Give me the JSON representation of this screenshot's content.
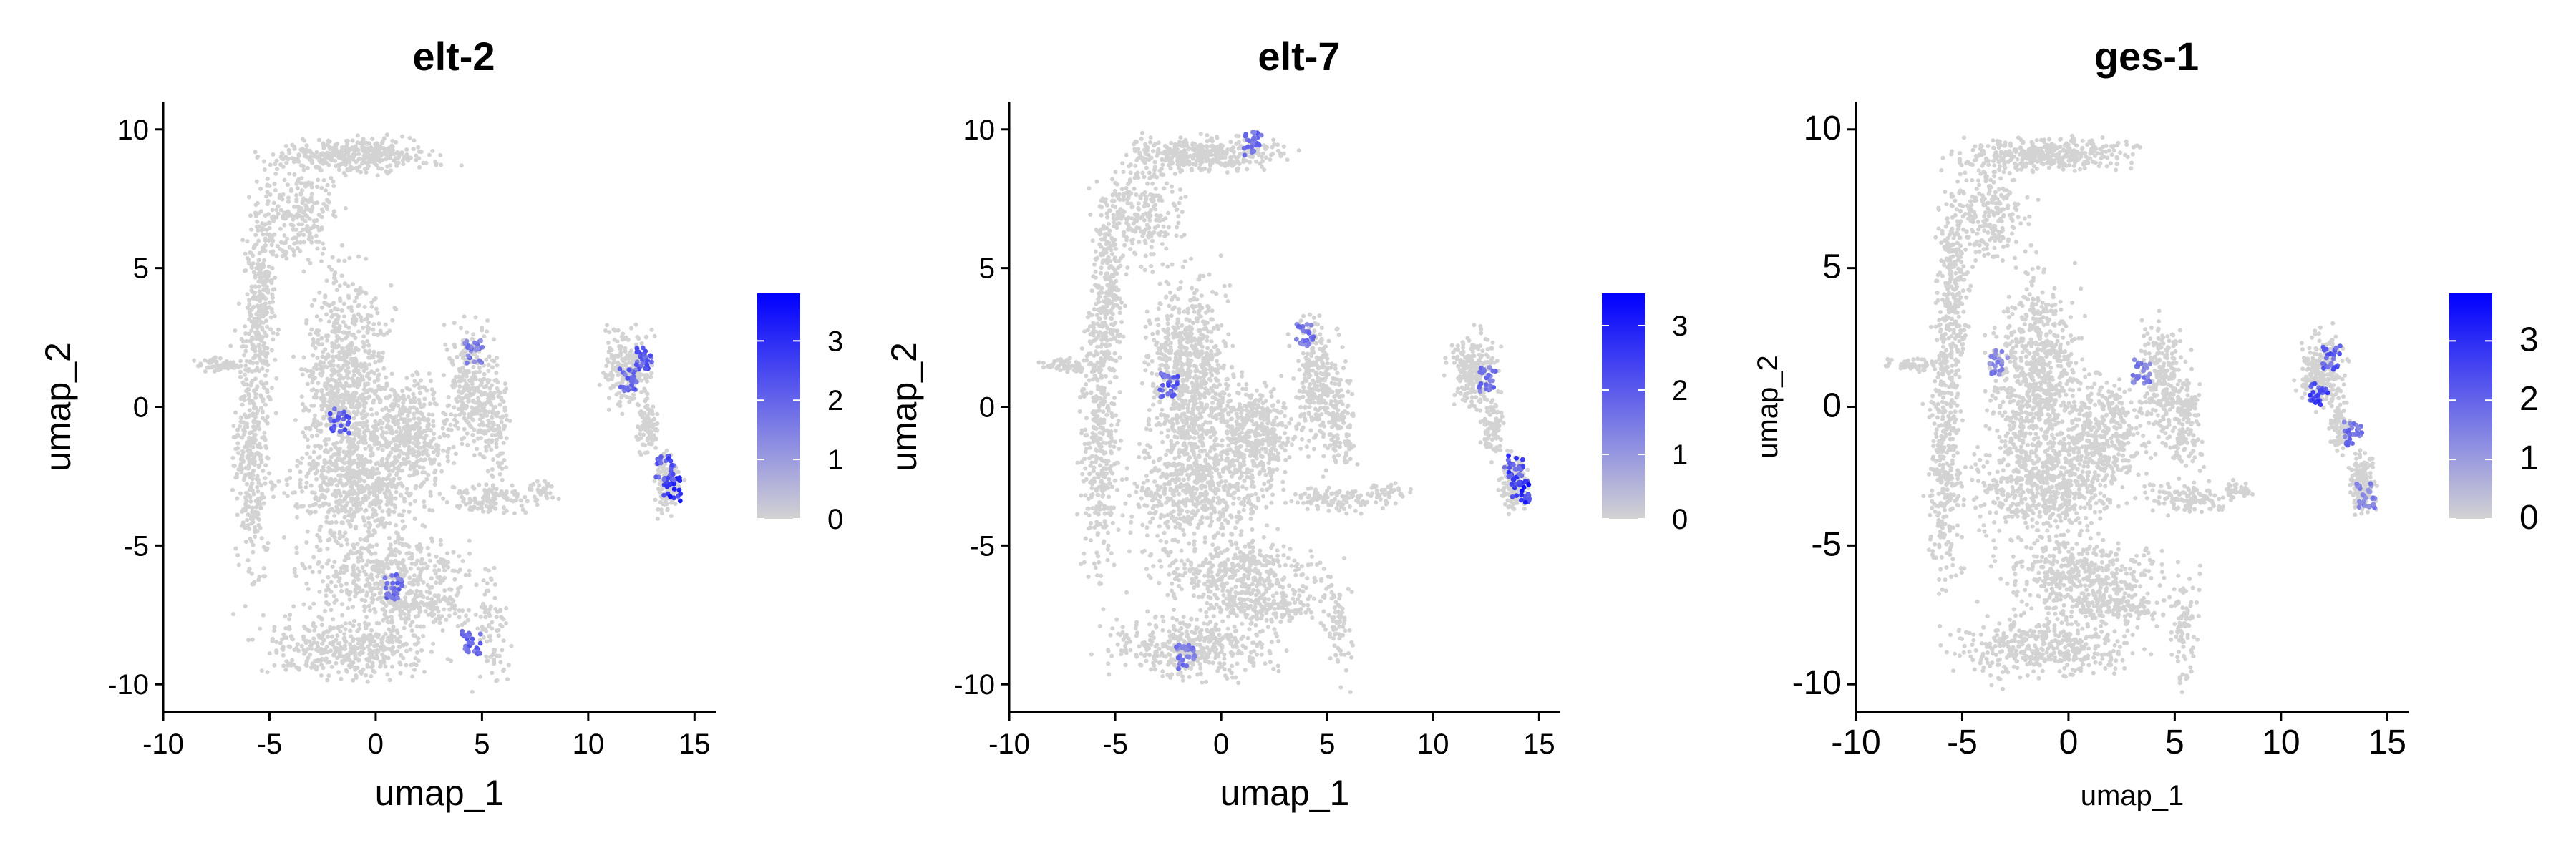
{
  "colors": {
    "low": "#d3d3d3",
    "high": "#0000ff",
    "axis": "#000000"
  },
  "chart_data": [
    {
      "type": "scatter",
      "title": "elt-2",
      "xlabel": "umap_1",
      "ylabel": "umap_2",
      "xlim": [
        -10,
        16
      ],
      "ylim": [
        -11,
        11
      ],
      "xticks": [
        "-10",
        "-5",
        "0",
        "5",
        "10",
        "15"
      ],
      "yticks": [
        "-10",
        "-5",
        "0",
        "5",
        "10"
      ],
      "colorbar": {
        "min": 0,
        "max": 3.8,
        "ticks": [
          "0",
          "1",
          "2",
          "3"
        ]
      },
      "grid": false,
      "expression_hotspots": [
        {
          "x": 13.9,
          "y": -3.0,
          "value": 3.5
        },
        {
          "x": 13.6,
          "y": -2.2,
          "value": 2.8
        },
        {
          "x": 12.6,
          "y": 1.8,
          "value": 2.6
        },
        {
          "x": 11.9,
          "y": 1.0,
          "value": 2.4
        },
        {
          "x": 4.6,
          "y": 2.0,
          "value": 2.0
        },
        {
          "x": -1.7,
          "y": -0.5,
          "value": 2.6
        },
        {
          "x": 0.8,
          "y": -6.5,
          "value": 2.3
        },
        {
          "x": 4.5,
          "y": -8.5,
          "value": 2.5
        }
      ]
    },
    {
      "type": "scatter",
      "title": "elt-7",
      "xlabel": "umap_1",
      "ylabel": "umap_2",
      "xlim": [
        -10,
        16
      ],
      "ylim": [
        -11,
        11
      ],
      "xticks": [
        "-10",
        "-5",
        "0",
        "5",
        "10",
        "15"
      ],
      "yticks": [
        "-10",
        "-5",
        "0",
        "5",
        "10"
      ],
      "colorbar": {
        "min": 0,
        "max": 3.5,
        "ticks": [
          "0",
          "1",
          "2",
          "3"
        ]
      },
      "grid": false,
      "expression_hotspots": [
        {
          "x": 14.1,
          "y": -3.0,
          "value": 3.3
        },
        {
          "x": 13.8,
          "y": -2.2,
          "value": 2.8
        },
        {
          "x": 12.5,
          "y": 1.0,
          "value": 2.0
        },
        {
          "x": -2.5,
          "y": 0.8,
          "value": 2.5
        },
        {
          "x": 1.5,
          "y": 9.5,
          "value": 2.2
        },
        {
          "x": 4.0,
          "y": 2.6,
          "value": 2.0
        },
        {
          "x": -1.7,
          "y": -9.0,
          "value": 2.0
        }
      ]
    },
    {
      "type": "scatter",
      "title": "ges-1",
      "xlabel": "umap_1",
      "ylabel": "umap_2",
      "xlim": [
        -10,
        16
      ],
      "ylim": [
        -11,
        11
      ],
      "xticks": [
        "-10",
        "-5",
        "0",
        "5",
        "10",
        "15"
      ],
      "yticks": [
        "-10",
        "-5",
        "0",
        "5",
        "10"
      ],
      "colorbar": {
        "min": 0,
        "max": 3.8,
        "ticks": [
          "0",
          "1",
          "2",
          "3"
        ]
      },
      "grid": false,
      "expression_hotspots": [
        {
          "x": 11.8,
          "y": 0.5,
          "value": 3.0
        },
        {
          "x": 12.4,
          "y": 1.8,
          "value": 2.6
        },
        {
          "x": 13.4,
          "y": -1.0,
          "value": 2.2
        },
        {
          "x": 14.0,
          "y": -3.2,
          "value": 2.0
        },
        {
          "x": 3.4,
          "y": 1.3,
          "value": 2.0
        },
        {
          "x": -3.3,
          "y": 1.6,
          "value": 1.8
        }
      ]
    }
  ]
}
